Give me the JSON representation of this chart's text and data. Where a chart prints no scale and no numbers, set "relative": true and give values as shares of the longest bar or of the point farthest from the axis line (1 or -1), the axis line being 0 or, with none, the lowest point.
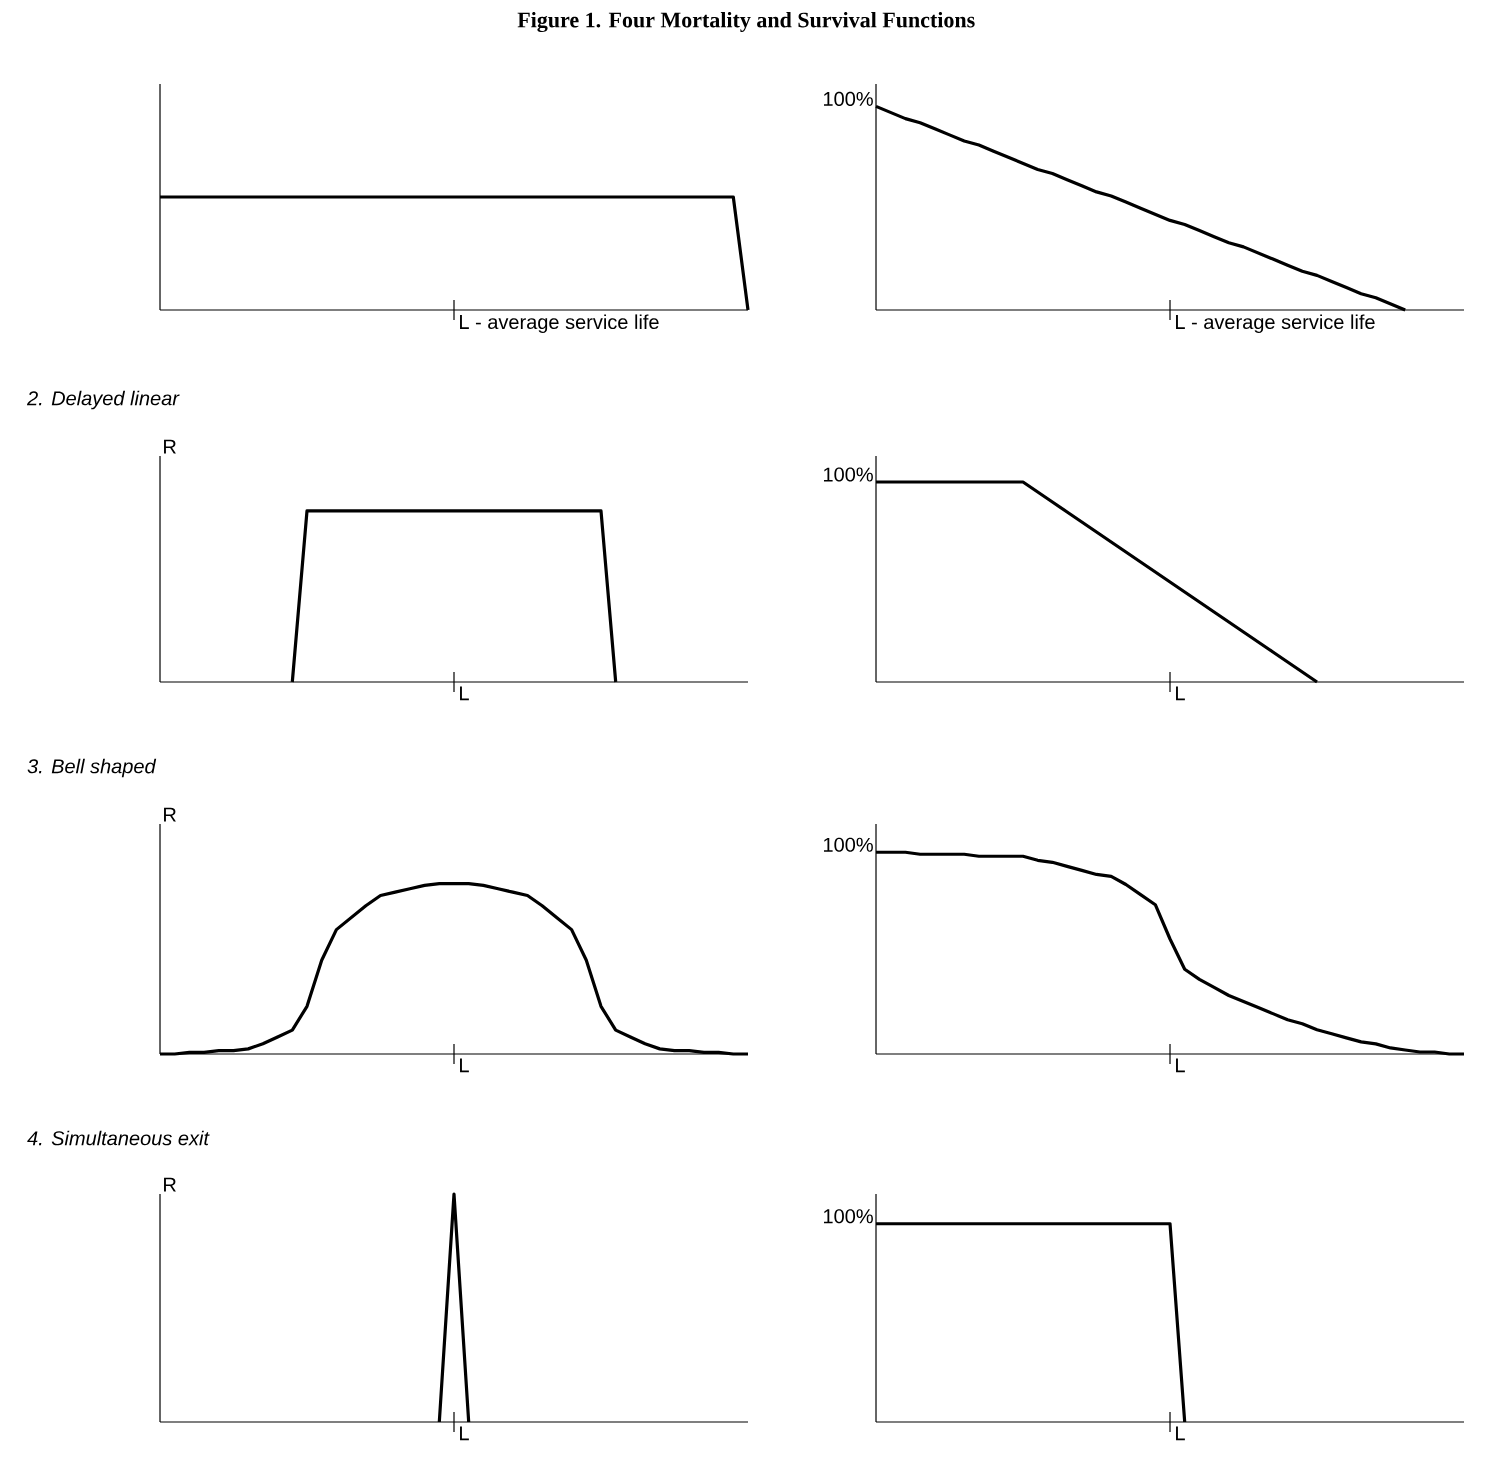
{
  "chart_data": [
    {
      "type": "line",
      "title": "Figure 1. Four Mortality and Survival Functions",
      "relative": true,
      "annotations": [
        "L - average service life"
      ],
      "categories": [
        null,
        null,
        null,
        null,
        null,
        null,
        null,
        null,
        null,
        null,
        null,
        null,
        null,
        null,
        null,
        null,
        null,
        null,
        null,
        null,
        null,
        null,
        null,
        null,
        null,
        null,
        null,
        null,
        null,
        null,
        null,
        null,
        null,
        null,
        null,
        null,
        null,
        null,
        null,
        null,
        null
      ],
      "series": [
        {
          "color": "#000000",
          "values": [
            1,
            1,
            1,
            1,
            1,
            1,
            1,
            1,
            1,
            1,
            1,
            1,
            1,
            1,
            1,
            1,
            1,
            1,
            1,
            1,
            1,
            1,
            1,
            1,
            1,
            1,
            1,
            1,
            1,
            1,
            1,
            1,
            1,
            1,
            1,
            1,
            1,
            1,
            1,
            1,
            0
          ]
        }
      ]
    },
    {
      "type": "line",
      "relative": true,
      "annotations": [
        "100%",
        "L - average service life"
      ],
      "categories": [
        null,
        null,
        null,
        null,
        null,
        null,
        null,
        null,
        null,
        null,
        null,
        null,
        null,
        null,
        null,
        null,
        null,
        null,
        null,
        null,
        null,
        null,
        null,
        null,
        null,
        null,
        null,
        null,
        null,
        null,
        null,
        null,
        null,
        null,
        null,
        null,
        null,
        null,
        null,
        null,
        null
      ],
      "series": [
        {
          "color": "#000000",
          "values": [
            1,
            0.97,
            0.94,
            0.92,
            0.89,
            0.86,
            0.83,
            0.81,
            0.78,
            0.75,
            0.72,
            0.69,
            0.67,
            0.64,
            0.61,
            0.58,
            0.56,
            0.53,
            0.5,
            0.47,
            0.44,
            0.42,
            0.39,
            0.36,
            0.33,
            0.31,
            0.28,
            0.25,
            0.22,
            0.19,
            0.17,
            0.14,
            0.11,
            0.08,
            0.06,
            0.03,
            0,
            null,
            null,
            null,
            null
          ]
        }
      ]
    },
    {
      "type": "line",
      "title": "2. Delayed linear",
      "ylabel": "R",
      "relative": true,
      "annotations": [
        "L"
      ],
      "categories": [
        null,
        null,
        null,
        null,
        null,
        null,
        null,
        null,
        null,
        null,
        null,
        null,
        null,
        null,
        null,
        null,
        null,
        null,
        null,
        null,
        null,
        null,
        null,
        null,
        null,
        null,
        null,
        null,
        null,
        null,
        null,
        null,
        null,
        null,
        null,
        null,
        null,
        null,
        null,
        null,
        null
      ],
      "series": [
        {
          "color": "#000000",
          "values": [
            null,
            null,
            null,
            null,
            null,
            null,
            null,
            null,
            null,
            0,
            1,
            1,
            1,
            1,
            1,
            1,
            1,
            1,
            1,
            1,
            1,
            1,
            1,
            1,
            1,
            1,
            1,
            1,
            1,
            1,
            1,
            0,
            null,
            null,
            null,
            null,
            null,
            null,
            null,
            null,
            null
          ]
        }
      ]
    },
    {
      "type": "line",
      "relative": true,
      "annotations": [
        "100%",
        "L"
      ],
      "categories": [
        null,
        null,
        null,
        null,
        null,
        null,
        null,
        null,
        null,
        null,
        null,
        null,
        null,
        null,
        null,
        null,
        null,
        null,
        null,
        null,
        null,
        null,
        null,
        null,
        null,
        null,
        null,
        null,
        null,
        null,
        null,
        null,
        null,
        null,
        null,
        null,
        null,
        null,
        null,
        null,
        null
      ],
      "series": [
        {
          "color": "#000000",
          "values": [
            1,
            1,
            1,
            1,
            1,
            1,
            1,
            1,
            1,
            1,
            1,
            0.95,
            0.9,
            0.85,
            0.8,
            0.75,
            0.7,
            0.65,
            0.6,
            0.55,
            0.5,
            0.45,
            0.4,
            0.35,
            0.3,
            0.25,
            0.2,
            0.15,
            0.1,
            0.05,
            0,
            null,
            null,
            null,
            null,
            null,
            null,
            null,
            null,
            null,
            null
          ]
        }
      ]
    },
    {
      "type": "line",
      "title": "3. Bell shaped",
      "ylabel": "R",
      "relative": true,
      "annotations": [
        "L"
      ],
      "categories": [
        null,
        null,
        null,
        null,
        null,
        null,
        null,
        null,
        null,
        null,
        null,
        null,
        null,
        null,
        null,
        null,
        null,
        null,
        null,
        null,
        null,
        null,
        null,
        null,
        null,
        null,
        null,
        null,
        null,
        null,
        null,
        null,
        null,
        null,
        null,
        null,
        null,
        null,
        null,
        null,
        null
      ],
      "series": [
        {
          "color": "#000000",
          "values": [
            0,
            0,
            0.01,
            0.01,
            0.02,
            0.02,
            0.03,
            0.06,
            0.1,
            0.14,
            0.28,
            0.55,
            0.73,
            0.8,
            0.87,
            0.93,
            0.95,
            0.97,
            0.99,
            1,
            1,
            1,
            0.99,
            0.97,
            0.95,
            0.93,
            0.87,
            0.8,
            0.73,
            0.55,
            0.28,
            0.14,
            0.1,
            0.06,
            0.03,
            0.02,
            0.02,
            0.01,
            0.01,
            0,
            0
          ]
        }
      ]
    },
    {
      "type": "line",
      "relative": true,
      "annotations": [
        "100%",
        "L"
      ],
      "categories": [
        null,
        null,
        null,
        null,
        null,
        null,
        null,
        null,
        null,
        null,
        null,
        null,
        null,
        null,
        null,
        null,
        null,
        null,
        null,
        null,
        null,
        null,
        null,
        null,
        null,
        null,
        null,
        null,
        null,
        null,
        null,
        null,
        null,
        null,
        null,
        null,
        null,
        null,
        null,
        null,
        null
      ],
      "series": [
        {
          "color": "#000000",
          "values": [
            1,
            1,
            1,
            0.99,
            0.99,
            0.99,
            0.99,
            0.98,
            0.98,
            0.98,
            0.98,
            0.96,
            0.95,
            0.93,
            0.91,
            0.89,
            0.88,
            0.84,
            0.79,
            0.74,
            0.57,
            0.42,
            0.37,
            0.33,
            0.29,
            0.26,
            0.23,
            0.2,
            0.17,
            0.15,
            0.12,
            0.1,
            0.08,
            0.06,
            0.05,
            0.03,
            0.02,
            0.01,
            0.01,
            0,
            0
          ]
        }
      ]
    },
    {
      "type": "line",
      "title": "4. Simultaneous exit",
      "ylabel": "R",
      "relative": true,
      "annotations": [
        "L"
      ],
      "categories": [
        null,
        null,
        null,
        null,
        null,
        null,
        null,
        null,
        null,
        null,
        null,
        null,
        null,
        null,
        null,
        null,
        null,
        null,
        null,
        null,
        null,
        null,
        null,
        null,
        null,
        null,
        null,
        null,
        null,
        null,
        null,
        null,
        null,
        null,
        null,
        null,
        null,
        null,
        null,
        null,
        null
      ],
      "series": [
        {
          "color": "#000000",
          "values": [
            null,
            null,
            null,
            null,
            null,
            null,
            null,
            null,
            null,
            null,
            null,
            null,
            null,
            null,
            null,
            null,
            null,
            null,
            null,
            0,
            1,
            0,
            null,
            null,
            null,
            null,
            null,
            null,
            null,
            null,
            null,
            null,
            null,
            null,
            null,
            null,
            null,
            null,
            null,
            null,
            null
          ]
        }
      ]
    },
    {
      "type": "line",
      "relative": true,
      "annotations": [
        "100%",
        "L"
      ],
      "categories": [
        null,
        null,
        null,
        null,
        null,
        null,
        null,
        null,
        null,
        null,
        null,
        null,
        null,
        null,
        null,
        null,
        null,
        null,
        null,
        null,
        null,
        null,
        null,
        null,
        null,
        null,
        null,
        null,
        null,
        null,
        null,
        null,
        null,
        null,
        null,
        null,
        null,
        null,
        null,
        null,
        null
      ],
      "series": [
        {
          "color": "#000000",
          "values": [
            1,
            1,
            1,
            1,
            1,
            1,
            1,
            1,
            1,
            1,
            1,
            1,
            1,
            1,
            1,
            1,
            1,
            1,
            1,
            1,
            1,
            0,
            null,
            null,
            null,
            null,
            null,
            null,
            null,
            null,
            null,
            null,
            null,
            null,
            null,
            null,
            null,
            null,
            null,
            null,
            null
          ]
        }
      ]
    }
  ]
}
